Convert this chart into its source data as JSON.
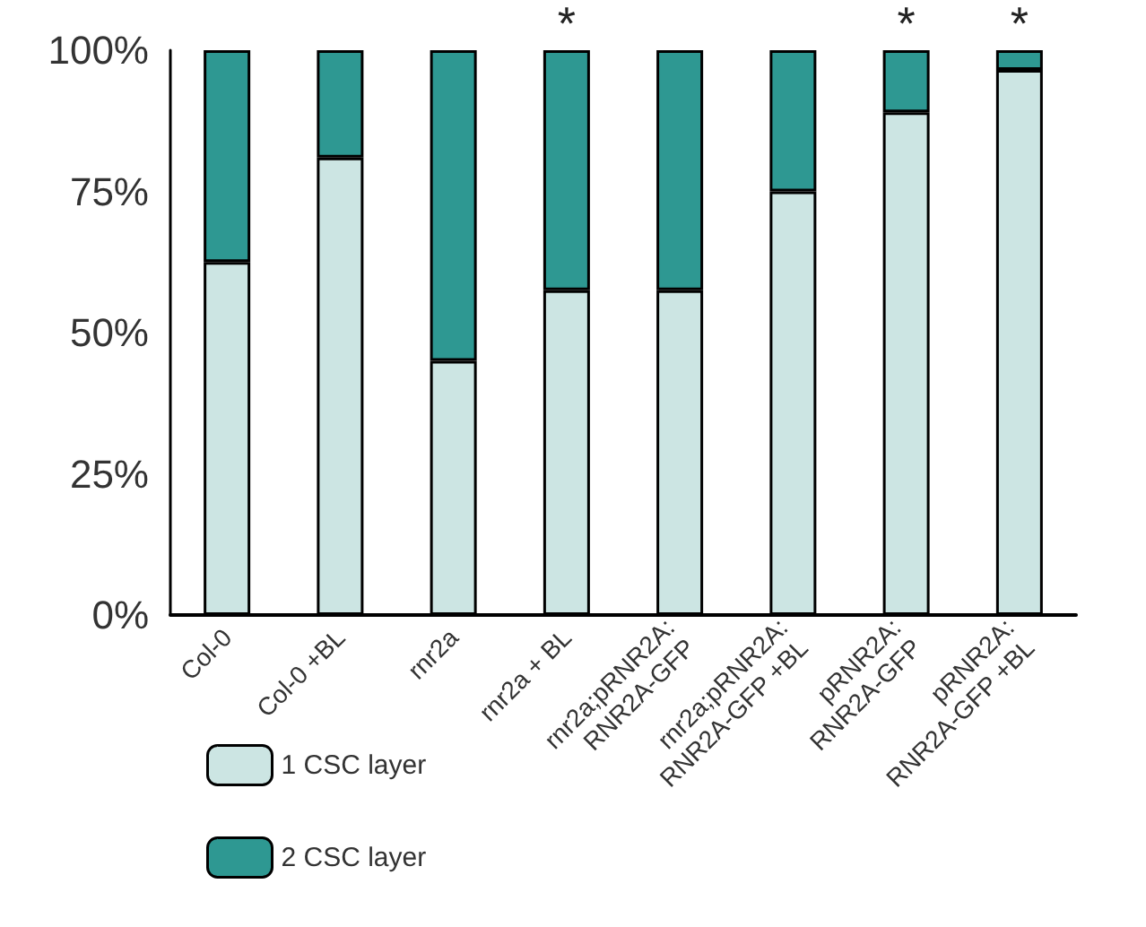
{
  "chart_data": {
    "type": "bar",
    "stacked": true,
    "categories": [
      "Col-0",
      "Col-0 +BL",
      "rnr2a",
      "rnr2a + BL",
      "rnr2a;pRNR2A:\nRNR2A-GFP",
      "rnr2a;pRNR2A:\nRNR2A-GFP +BL",
      "pRNR2A:\nRNR2A-GFP",
      "pRNR2A:\nRNR2A-GFP +BL"
    ],
    "series": [
      {
        "name": "1 CSC layer",
        "color": "#cce5e3",
        "values": [
          62.5,
          81,
          45,
          57.5,
          57.5,
          75,
          89,
          96.5
        ]
      },
      {
        "name": "2 CSC layer",
        "color": "#2e9892",
        "values": [
          37.5,
          19,
          55,
          42.5,
          42.5,
          25,
          11,
          3.5
        ]
      }
    ],
    "ylim": [
      0,
      100
    ],
    "yticks": [
      {
        "value": 0,
        "label": "0%"
      },
      {
        "value": 25,
        "label": "25%"
      },
      {
        "value": 50,
        "label": "50%"
      },
      {
        "value": 75,
        "label": "75%"
      },
      {
        "value": 100,
        "label": "100%"
      }
    ],
    "annotations": [
      {
        "text": "*",
        "x": "rnr2a + BL",
        "y": 100
      },
      {
        "text": "*",
        "x": "pRNR2A:\nRNR2A-GFP",
        "y": 100
      },
      {
        "text": "*",
        "x": "pRNR2A:\nRNR2A-GFP +BL",
        "y": 100
      }
    ],
    "legend": "bottom left",
    "grid": false
  }
}
